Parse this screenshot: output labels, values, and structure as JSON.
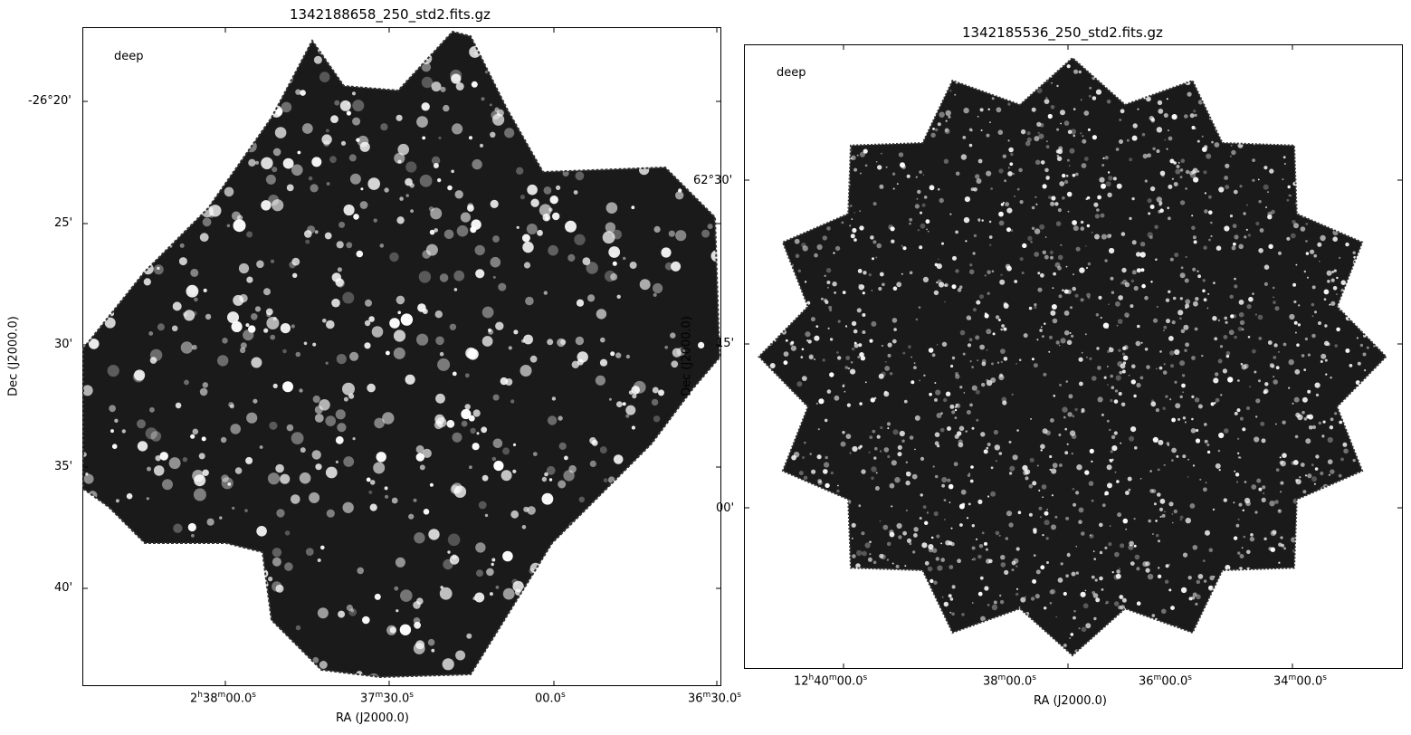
{
  "panels": [
    {
      "title": "1342188658_250_std2.fits.gz",
      "label": "deep",
      "xlabel": "RA (J2000.0)",
      "ylabel": "Dec (J2000.0)",
      "yticks": [
        "-26°20'",
        "25'",
        "30'",
        "35'",
        "40'"
      ],
      "xticks": [
        {
          "h": "2",
          "m": "38",
          "s": "00.0"
        },
        {
          "h": "",
          "m": "37",
          "s": "30.0"
        },
        {
          "h": "",
          "m": "",
          "s": "00.0"
        },
        {
          "h": "",
          "m": "36",
          "s": "30.0"
        }
      ]
    },
    {
      "title": "1342185536_250_std2.fits.gz",
      "label": "deep",
      "xlabel": "RA (J2000.0)",
      "ylabel": "Dec (J2000.0)",
      "yticks": [
        "62°30'",
        "15'",
        "00'"
      ],
      "xticks": [
        {
          "h": "12",
          "m": "40",
          "s": "00.0"
        },
        {
          "h": "",
          "m": "38",
          "s": "00.0"
        },
        {
          "h": "",
          "m": "36",
          "s": "00.0"
        },
        {
          "h": "",
          "m": "34",
          "s": "00.0"
        }
      ]
    }
  ],
  "colors": {
    "map_background": "#ffffff",
    "sky": "#1a1a1a",
    "source": "#ffffff"
  }
}
